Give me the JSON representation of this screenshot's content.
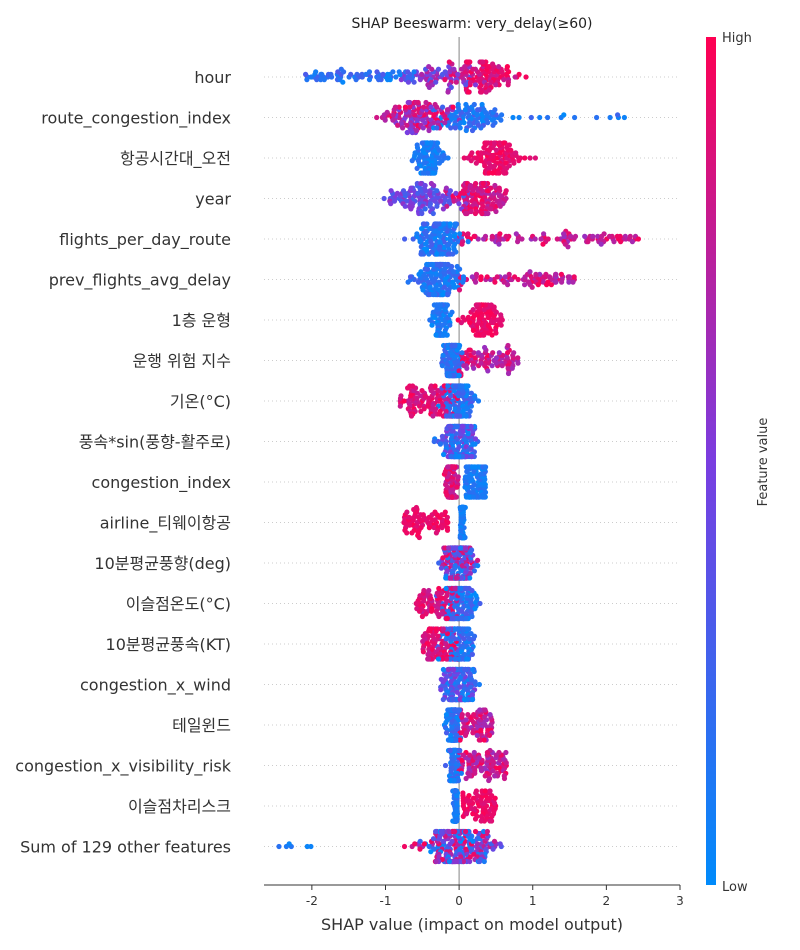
{
  "chart_data": {
    "type": "scatter",
    "subtype": "beeswarm",
    "title": "SHAP Beeswarm: very_delay(≥60)",
    "xlabel": "SHAP value (impact on model output)",
    "xlim": [
      -2.65,
      3.0
    ],
    "xticks": [
      -2,
      -1,
      0,
      1,
      2,
      3
    ],
    "xtick_labels": [
      "-2",
      "-1",
      "0",
      "1",
      "2",
      "3"
    ],
    "colorbar": {
      "label": "Feature value",
      "high": "High",
      "low": "Low",
      "colors": [
        "#008bfb",
        "#ff0052"
      ]
    },
    "features": [
      {
        "name": "hour",
        "range": [
          -2.1,
          1.5
        ],
        "mode": "bimodal_hour"
      },
      {
        "name": "route_congestion_index",
        "range": [
          -1.4,
          2.75
        ],
        "mode": "route"
      },
      {
        "name": "항공시간대_오전",
        "range": [
          -0.75,
          1.2
        ],
        "mode": "binary_blue_left"
      },
      {
        "name": "year",
        "range": [
          -1.35,
          1.0
        ],
        "mode": "year"
      },
      {
        "name": "flights_per_day_route",
        "range": [
          -0.8,
          2.45
        ],
        "mode": "right_tail_red"
      },
      {
        "name": "prev_flights_avg_delay",
        "range": [
          -0.75,
          1.6
        ],
        "mode": "right_tail_red"
      },
      {
        "name": "1층 운형",
        "range": [
          -0.45,
          0.75
        ],
        "mode": "binary_blue_left"
      },
      {
        "name": "운행 위험 지수",
        "range": [
          -0.25,
          0.8
        ],
        "mode": "right_tail_red"
      },
      {
        "name": "기온(°C)",
        "range": [
          -0.9,
          0.95
        ],
        "mode": "left_red"
      },
      {
        "name": "풍속*sin(풍향-활주로)",
        "range": [
          -0.55,
          0.35
        ],
        "mode": "mixed_blue"
      },
      {
        "name": "congestion_index",
        "range": [
          -0.25,
          0.4
        ],
        "mode": "left_red_right_blue"
      },
      {
        "name": "airline_티웨이항공",
        "range": [
          -0.8,
          0.1
        ],
        "mode": "binary_red_left"
      },
      {
        "name": "10분평균풍향(deg)",
        "range": [
          -0.4,
          0.45
        ],
        "mode": "mixed"
      },
      {
        "name": "이슬점온도(°C)",
        "range": [
          -0.65,
          0.6
        ],
        "mode": "left_red"
      },
      {
        "name": "10분평균풍속(KT)",
        "range": [
          -0.55,
          0.3
        ],
        "mode": "left_red"
      },
      {
        "name": "congestion_x_wind",
        "range": [
          -0.25,
          0.45
        ],
        "mode": "mixed_blue"
      },
      {
        "name": "테일윈드",
        "range": [
          -0.2,
          0.45
        ],
        "mode": "right_tail_red"
      },
      {
        "name": "congestion_x_visibility_risk",
        "range": [
          -0.2,
          0.65
        ],
        "mode": "right_tail_red"
      },
      {
        "name": "이슬점차리스크",
        "range": [
          -0.1,
          0.5
        ],
        "mode": "binary_red_right"
      },
      {
        "name": "Sum of 129 other features",
        "range": [
          -2.45,
          1.2
        ],
        "mode": "sum_other"
      }
    ]
  }
}
